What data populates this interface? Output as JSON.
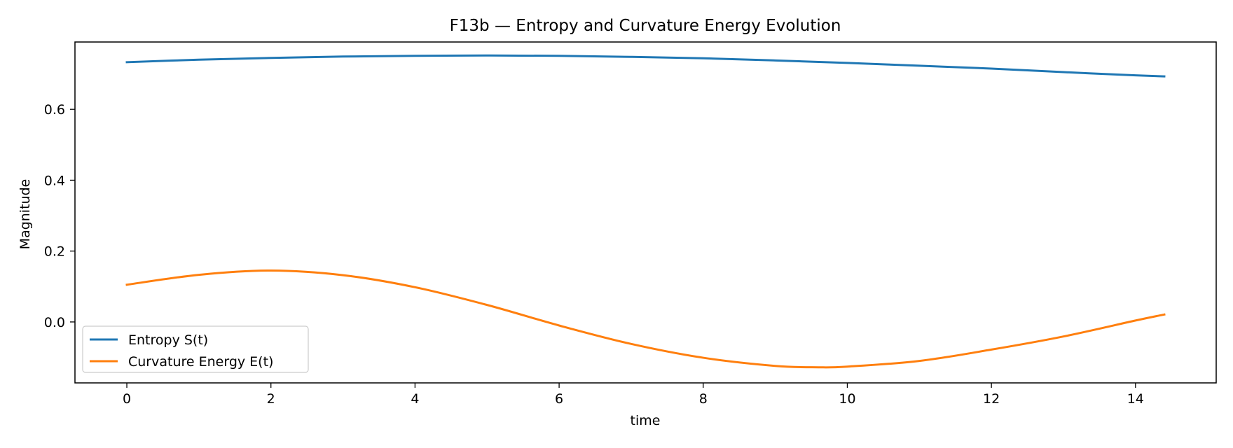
{
  "chart_data": {
    "type": "line",
    "title": "F13b — Entropy and Curvature Energy Evolution",
    "xlabel": "time",
    "ylabel": "Magnitude",
    "xlim": [
      -0.72,
      15.12
    ],
    "ylim": [
      -0.172,
      0.79
    ],
    "xticks": [
      0,
      2,
      4,
      6,
      8,
      10,
      12,
      14
    ],
    "xtick_labels": [
      "0",
      "2",
      "4",
      "6",
      "8",
      "10",
      "12",
      "14"
    ],
    "yticks": [
      0.0,
      0.2,
      0.4,
      0.6
    ],
    "ytick_labels": [
      "0.0",
      "0.2",
      "0.4",
      "0.6"
    ],
    "grid": false,
    "legend_position": "lower-left",
    "series": [
      {
        "name": "Entropy S(t)",
        "color": "#1f77b4",
        "x": [
          0,
          1,
          2,
          3,
          4,
          5,
          6,
          7,
          8,
          9,
          10,
          11,
          12,
          13,
          14,
          14.4
        ],
        "y": [
          0.733,
          0.74,
          0.745,
          0.749,
          0.751,
          0.752,
          0.751,
          0.748,
          0.744,
          0.738,
          0.731,
          0.723,
          0.715,
          0.705,
          0.696,
          0.693
        ]
      },
      {
        "name": "Curvature Energy E(t)",
        "color": "#ff7f0e",
        "x": [
          0,
          1,
          2,
          3,
          4,
          5,
          6,
          7,
          8,
          9,
          9.6,
          10,
          11,
          12,
          13,
          14,
          14.4
        ],
        "y": [
          0.105,
          0.133,
          0.145,
          0.132,
          0.098,
          0.048,
          -0.01,
          -0.062,
          -0.101,
          -0.124,
          -0.128,
          -0.126,
          -0.11,
          -0.078,
          -0.041,
          0.004,
          0.021
        ]
      }
    ]
  }
}
